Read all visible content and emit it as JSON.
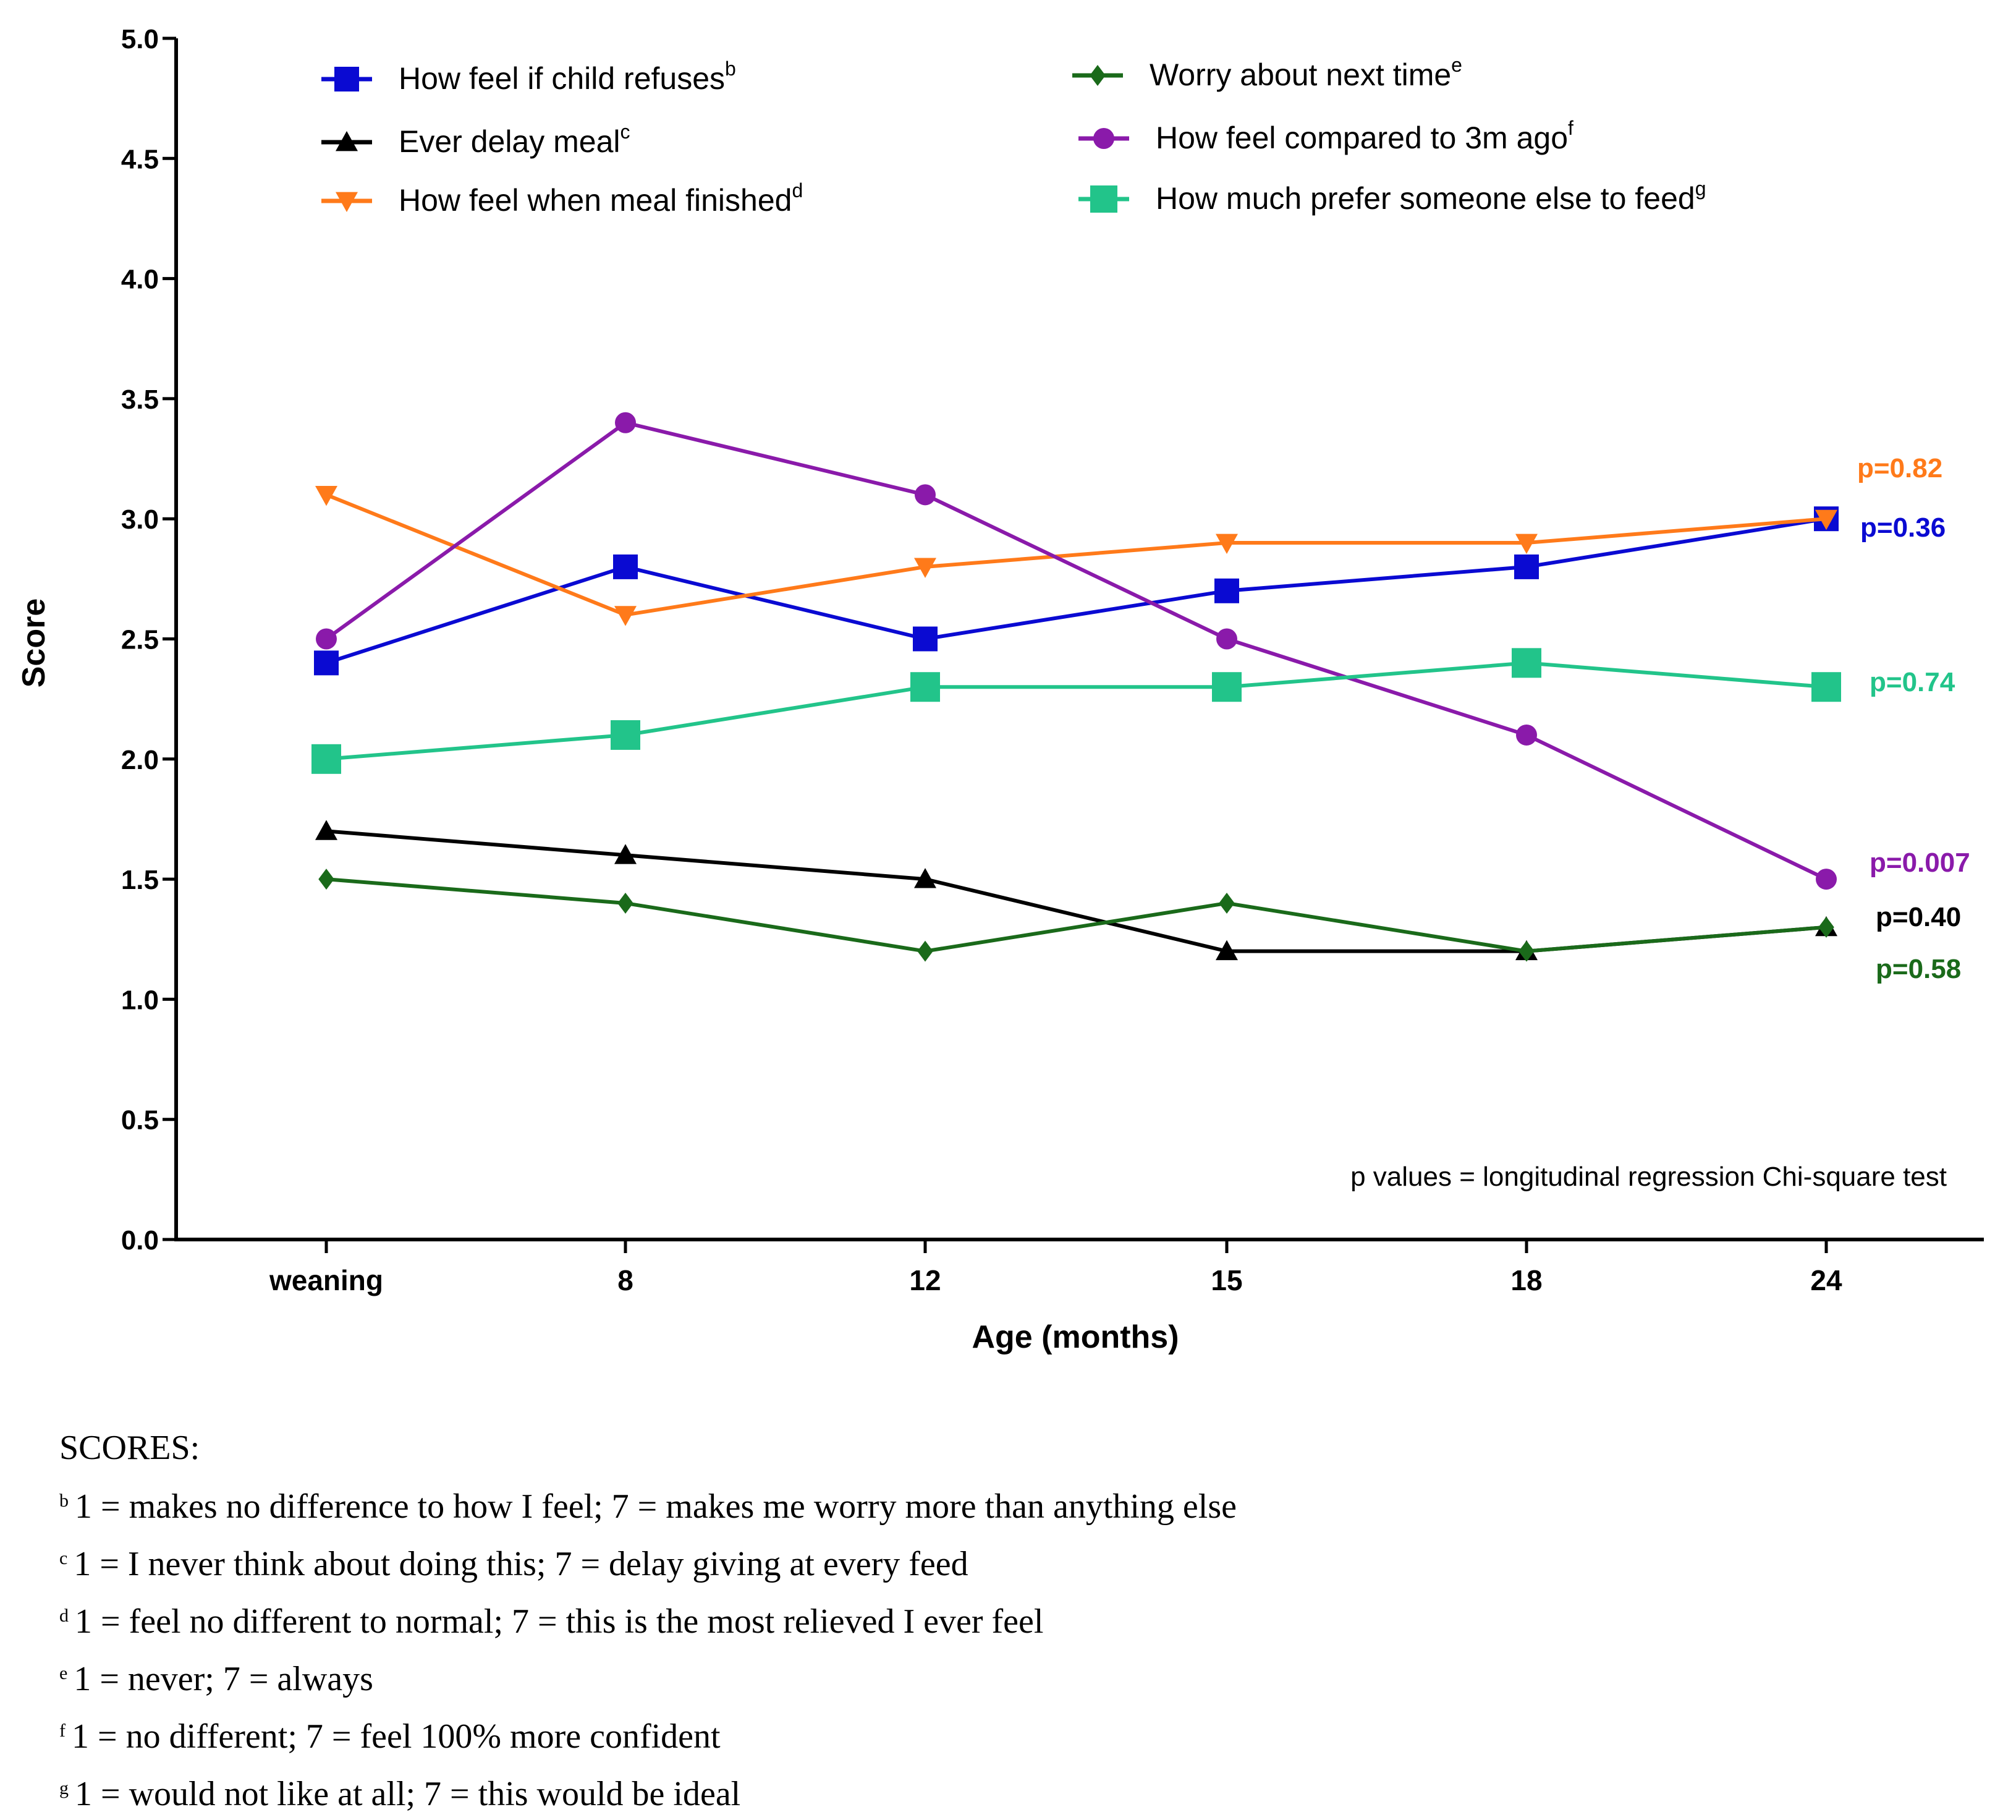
{
  "chart_data": {
    "type": "line",
    "xlabel": "Age (months)",
    "ylabel": "Score",
    "categories": [
      "weaning",
      "8",
      "12",
      "15",
      "18",
      "24"
    ],
    "ylim": [
      0,
      5
    ],
    "yticks": [
      "0.0",
      "0.5",
      "1.0",
      "1.5",
      "2.0",
      "2.5",
      "3.0",
      "3.5",
      "4.0",
      "4.5",
      "5.0"
    ],
    "grid": false,
    "legend_position": "top",
    "annotation": "p values = longitudinal regression Chi-square test",
    "series": [
      {
        "name": "How feel if child refuses",
        "sup": "b",
        "color": "#0a0ad2",
        "marker": "square",
        "values": [
          2.4,
          2.8,
          2.5,
          2.7,
          2.8,
          3.0
        ],
        "pvalue": "p=0.36"
      },
      {
        "name": "Ever delay meal",
        "sup": "c",
        "color": "#000000",
        "marker": "triangle-up",
        "values": [
          1.7,
          1.6,
          1.5,
          1.2,
          1.2,
          1.3
        ],
        "pvalue": "p=0.40"
      },
      {
        "name": "How feel when meal finished",
        "sup": "d",
        "color": "#ff7a1a",
        "marker": "triangle-down",
        "values": [
          3.1,
          2.6,
          2.8,
          2.9,
          2.9,
          3.0
        ],
        "pvalue": "p=0.82"
      },
      {
        "name": "Worry about next time",
        "sup": "e",
        "color": "#1a6a1a",
        "marker": "diamond",
        "values": [
          1.5,
          1.4,
          1.2,
          1.4,
          1.2,
          1.3
        ],
        "pvalue": "p=0.58"
      },
      {
        "name": "How feel compared to 3m ago",
        "sup": "f",
        "color": "#8a1aaa",
        "marker": "circle",
        "values": [
          2.5,
          3.4,
          3.1,
          2.5,
          2.1,
          1.5
        ],
        "pvalue": "p=0.007"
      },
      {
        "name": "How much prefer someone else to feed",
        "sup": "g",
        "color": "#22c48a",
        "marker": "square",
        "values": [
          2.0,
          2.1,
          2.3,
          2.3,
          2.4,
          2.3
        ],
        "pvalue": "p=0.74"
      }
    ]
  },
  "scores": {
    "heading": "SCORES:",
    "items": [
      {
        "sup": "b",
        "text": "1 = makes no difference to how I feel; 7 = makes me worry more than anything else"
      },
      {
        "sup": "c",
        "text": "1 = I never think about doing this; 7 = delay giving at every feed"
      },
      {
        "sup": "d",
        "text": "1 = feel no different to normal; 7 = this is the most relieved I ever feel"
      },
      {
        "sup": "e",
        "text": "1 = never; 7 = always"
      },
      {
        "sup": "f",
        "text": "1 = no different; 7 = feel 100% more confident"
      },
      {
        "sup": "g",
        "text": "1 = would not like at all; 7 = this would be ideal"
      }
    ]
  }
}
